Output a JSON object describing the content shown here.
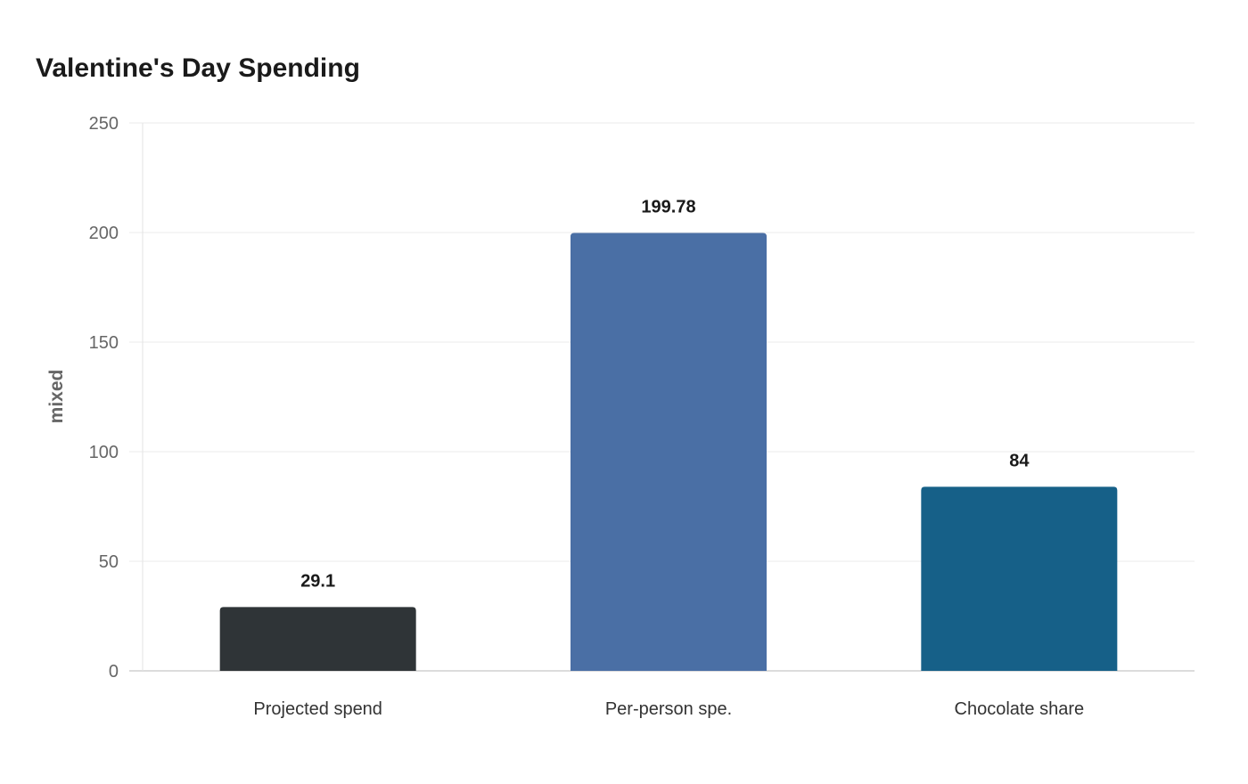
{
  "chart_data": {
    "type": "bar",
    "title": "Valentine's Day Spending",
    "xlabel": "",
    "ylabel": "mixed",
    "ylim": [
      0,
      250
    ],
    "yticks": [
      0,
      50,
      100,
      150,
      200,
      250
    ],
    "grid": true,
    "categories": [
      "Projected spend",
      "Per-person spe.",
      "Chocolate share"
    ],
    "values": [
      29.1,
      199.78,
      84
    ],
    "data_labels": [
      "29.1",
      "199.78",
      "84"
    ],
    "colors": [
      "#2f3437",
      "#4a6fa5",
      "#166088"
    ]
  }
}
